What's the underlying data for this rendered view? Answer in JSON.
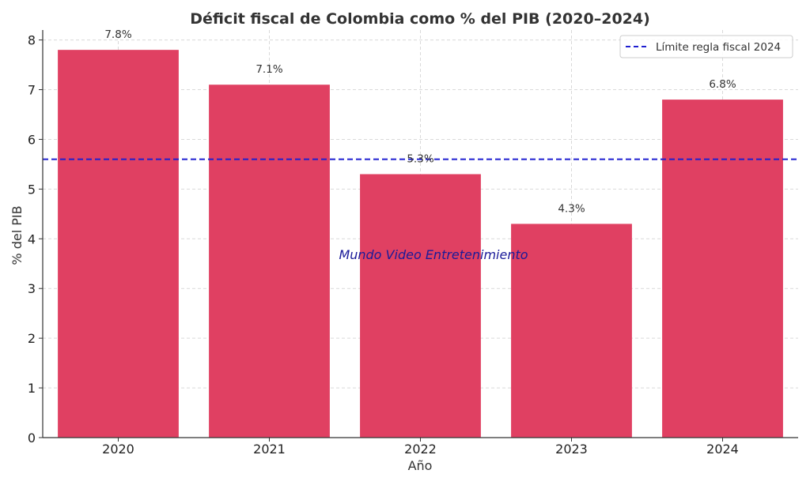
{
  "chart_data": {
    "type": "bar",
    "title": "Déficit fiscal de Colombia como % del PIB (2020–2024)",
    "xlabel": "Año",
    "ylabel": "% del PIB",
    "categories": [
      "2020",
      "2021",
      "2022",
      "2023",
      "2024"
    ],
    "values": [
      7.8,
      7.1,
      5.3,
      4.3,
      6.8
    ],
    "data_labels": [
      "7.8%",
      "7.1%",
      "5.3%",
      "4.3%",
      "6.8%"
    ],
    "ylim": [
      0,
      8.2
    ],
    "yticks": [
      0,
      1,
      2,
      3,
      4,
      5,
      6,
      7,
      8
    ],
    "grid": true,
    "bar_color": "#e04062",
    "reference_line": {
      "label": "Límite regla fiscal 2024",
      "value": 5.6,
      "style": "dashed",
      "color": "#1f1fd0"
    },
    "legend_position": "top-right",
    "watermark": {
      "text": "Mundo Video Entretenimiento",
      "color": "#1a1a99"
    }
  }
}
